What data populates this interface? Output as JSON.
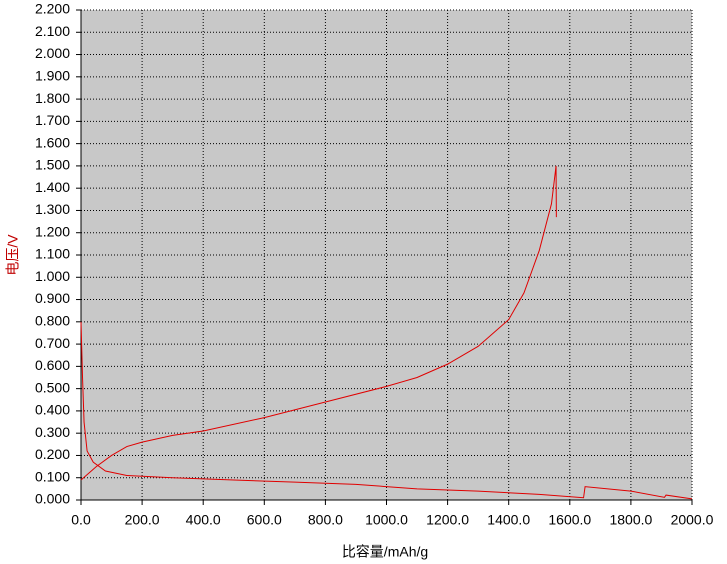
{
  "chart_data": {
    "type": "line",
    "xlabel": "比容量/mAh/g",
    "ylabel": "电压/V",
    "xlim": [
      0,
      2000
    ],
    "ylim": [
      0,
      2.2
    ],
    "grid": true,
    "background": "#c8c8c8",
    "xticks": [
      {
        "value": 0,
        "label": "0.0"
      },
      {
        "value": 200,
        "label": "200.0"
      },
      {
        "value": 400,
        "label": "400.0"
      },
      {
        "value": 600,
        "label": "600.0"
      },
      {
        "value": 800,
        "label": "800.0"
      },
      {
        "value": 1000,
        "label": "1000.0"
      },
      {
        "value": 1200,
        "label": "1200.0"
      },
      {
        "value": 1400,
        "label": "1400.0"
      },
      {
        "value": 1600,
        "label": "1600.0"
      },
      {
        "value": 1800,
        "label": "1800.0"
      },
      {
        "value": 2000,
        "label": "2000.0"
      }
    ],
    "yticks": [
      {
        "value": 0,
        "label": "0.000"
      },
      {
        "value": 0.1,
        "label": "0.100"
      },
      {
        "value": 0.2,
        "label": "0.200"
      },
      {
        "value": 0.3,
        "label": "0.300"
      },
      {
        "value": 0.4,
        "label": "0.400"
      },
      {
        "value": 0.5,
        "label": "0.500"
      },
      {
        "value": 0.6,
        "label": "0.600"
      },
      {
        "value": 0.7,
        "label": "0.700"
      },
      {
        "value": 0.8,
        "label": "0.800"
      },
      {
        "value": 0.9,
        "label": "0.900"
      },
      {
        "value": 1.0,
        "label": "1.000"
      },
      {
        "value": 1.1,
        "label": "1.100"
      },
      {
        "value": 1.2,
        "label": "1.200"
      },
      {
        "value": 1.3,
        "label": "1.300"
      },
      {
        "value": 1.4,
        "label": "1.400"
      },
      {
        "value": 1.5,
        "label": "1.500"
      },
      {
        "value": 1.6,
        "label": "1.600"
      },
      {
        "value": 1.7,
        "label": "1.700"
      },
      {
        "value": 1.8,
        "label": "1.800"
      },
      {
        "value": 1.9,
        "label": "1.900"
      },
      {
        "value": 2.0,
        "label": "2.000"
      },
      {
        "value": 2.1,
        "label": "2.100"
      },
      {
        "value": 2.2,
        "label": "2.200"
      }
    ],
    "series": [
      {
        "color": "#e00000",
        "x": [
          0,
          5,
          10,
          20,
          40,
          80,
          150,
          300,
          500,
          700,
          900,
          1100,
          1300,
          1500,
          1645,
          1650,
          1800,
          1910,
          1915,
          2000
        ],
        "values": [
          0.8,
          0.55,
          0.35,
          0.22,
          0.17,
          0.13,
          0.11,
          0.1,
          0.09,
          0.08,
          0.07,
          0.05,
          0.04,
          0.025,
          0.01,
          0.06,
          0.04,
          0.012,
          0.022,
          0.005
        ]
      },
      {
        "color": "#e00000",
        "x": [
          0,
          50,
          100,
          150,
          200,
          300,
          400,
          600,
          800,
          1000,
          1100,
          1200,
          1300,
          1400,
          1450,
          1500,
          1540,
          1555,
          1556
        ],
        "values": [
          0.09,
          0.15,
          0.2,
          0.24,
          0.26,
          0.29,
          0.31,
          0.37,
          0.44,
          0.51,
          0.55,
          0.61,
          0.69,
          0.81,
          0.93,
          1.12,
          1.33,
          1.5,
          1.27
        ]
      }
    ]
  }
}
